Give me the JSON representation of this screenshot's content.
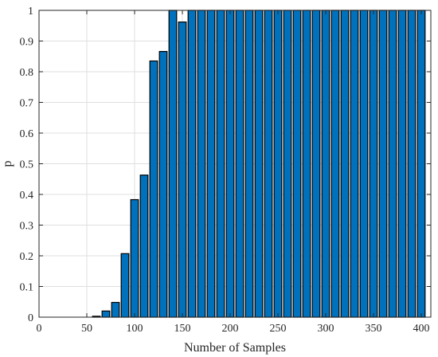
{
  "chart_data": {
    "type": "bar",
    "title": "",
    "xlabel": "Number of Samples",
    "ylabel": "p",
    "xlim": [
      0,
      410
    ],
    "ylim": [
      0,
      1
    ],
    "grid": true,
    "legend": "none",
    "bar_color": "#0072BD",
    "bar_edge_color": "#000000",
    "x_ticks": [
      0,
      50,
      100,
      150,
      200,
      250,
      300,
      350,
      400
    ],
    "y_ticks": [
      0,
      0.1,
      0.2,
      0.3,
      0.4,
      0.5,
      0.6,
      0.7,
      0.8,
      0.9,
      1
    ],
    "x_tick_labels": [
      "0",
      "50",
      "100",
      "150",
      "200",
      "250",
      "300",
      "350",
      "400"
    ],
    "y_tick_labels": [
      "0",
      "0.1",
      "0.2",
      "0.3",
      "0.4",
      "0.5",
      "0.6",
      "0.7",
      "0.8",
      "0.9",
      "1"
    ],
    "x": [
      10,
      20,
      30,
      40,
      50,
      60,
      70,
      80,
      90,
      100,
      110,
      120,
      130,
      140,
      150,
      160,
      170,
      180,
      190,
      200,
      210,
      220,
      230,
      240,
      250,
      260,
      270,
      280,
      290,
      300,
      310,
      320,
      330,
      340,
      350,
      360,
      370,
      380,
      390,
      400
    ],
    "values": [
      0,
      0,
      0,
      0,
      0,
      0.003,
      0.02,
      0.048,
      0.207,
      0.383,
      0.463,
      0.835,
      0.866,
      1,
      0.962,
      1,
      1,
      1,
      1,
      1,
      1,
      1,
      1,
      1,
      1,
      1,
      1,
      1,
      1,
      1,
      1,
      1,
      1,
      1,
      1,
      1,
      1,
      1,
      1,
      1
    ]
  }
}
